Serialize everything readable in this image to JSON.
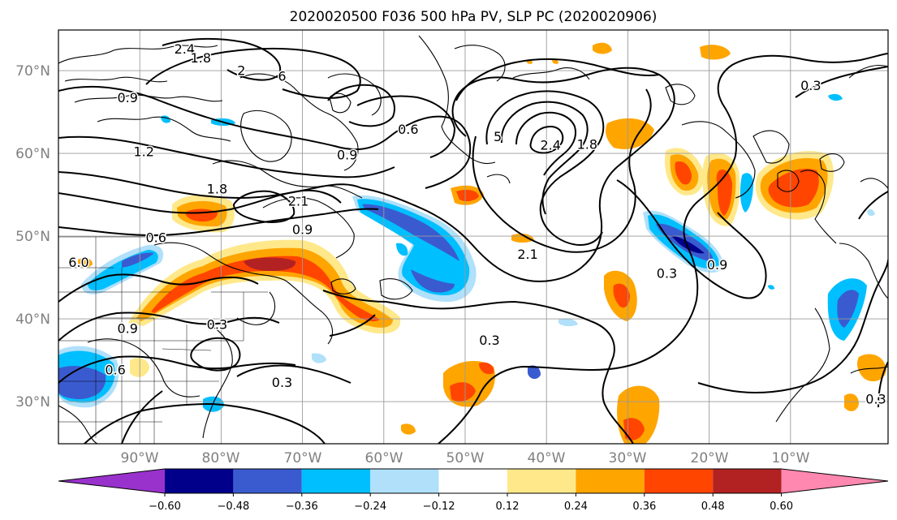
{
  "figure": {
    "title": "2020020500 F036 500 hPa PV, SLP PC (2020020906)"
  },
  "map": {
    "projection": "lat-lon",
    "extent": {
      "lon": [
        -100,
        2
      ],
      "lat": [
        25,
        75
      ]
    },
    "lat_labels": [
      {
        "lat": 70,
        "text": "70°N"
      },
      {
        "lat": 60,
        "text": "60°N"
      },
      {
        "lat": 50,
        "text": "50°N"
      },
      {
        "lat": 40,
        "text": "40°N"
      },
      {
        "lat": 30,
        "text": "30°N"
      }
    ],
    "lon_labels": [
      {
        "lon": -90,
        "text": "90°W"
      },
      {
        "lon": -80,
        "text": "80°W"
      },
      {
        "lon": -70,
        "text": "70°W"
      },
      {
        "lon": -60,
        "text": "60°W"
      },
      {
        "lon": -50,
        "text": "50°W"
      },
      {
        "lon": -40,
        "text": "40°W"
      },
      {
        "lon": -30,
        "text": "30°W"
      },
      {
        "lon": -20,
        "text": "20°W"
      },
      {
        "lon": -10,
        "text": "10°W"
      }
    ],
    "grid": true,
    "contour_labels": [
      {
        "text": "2.4",
        "lon": -84.5,
        "lat": 72.6
      },
      {
        "text": "1.8",
        "lon": -82.5,
        "lat": 71.5
      },
      {
        "text": "2",
        "lon": -77.5,
        "lat": 70.0
      },
      {
        "text": "6",
        "lon": -72.5,
        "lat": 69.3
      },
      {
        "text": "0.9",
        "lon": -91.5,
        "lat": 66.7
      },
      {
        "text": "1.2",
        "lon": -89.5,
        "lat": 60.2
      },
      {
        "text": "1.8",
        "lon": -80.5,
        "lat": 55.7
      },
      {
        "text": "2.1",
        "lon": -70.5,
        "lat": 54.2
      },
      {
        "text": "0.9",
        "lon": -70.0,
        "lat": 50.8
      },
      {
        "text": "0.6",
        "lon": -88.0,
        "lat": 49.8
      },
      {
        "text": "0.9",
        "lon": -64.5,
        "lat": 59.8
      },
      {
        "text": "0.6",
        "lon": -57.0,
        "lat": 62.9
      },
      {
        "text": "5",
        "lon": -46.0,
        "lat": 62.0
      },
      {
        "text": "2.4",
        "lon": -39.5,
        "lat": 61.0
      },
      {
        "text": "1.8",
        "lon": -35.0,
        "lat": 61.1
      },
      {
        "text": "2.1",
        "lon": -42.3,
        "lat": 47.8
      },
      {
        "text": "0.3",
        "lon": -47.0,
        "lat": 37.4
      },
      {
        "text": "0.3",
        "lon": -25.2,
        "lat": 45.5
      },
      {
        "text": "0.9",
        "lon": -19.0,
        "lat": 46.5
      },
      {
        "text": "0.3",
        "lon": -7.5,
        "lat": 68.2
      },
      {
        "text": "0.9",
        "lon": -91.5,
        "lat": 38.8
      },
      {
        "text": "0.6",
        "lon": -93.0,
        "lat": 33.8
      },
      {
        "text": "0.3",
        "lon": -80.5,
        "lat": 39.3
      },
      {
        "text": "0.3",
        "lon": -72.5,
        "lat": 32.3
      },
      {
        "text": "6.0",
        "lon": -97.5,
        "lat": 46.8
      },
      {
        "text": "0.3",
        "lon": 0.5,
        "lat": 30.3
      }
    ]
  },
  "colorbar": {
    "ticks": [
      "−0.60",
      "−0.48",
      "−0.36",
      "−0.24",
      "−0.12",
      "0.12",
      "0.24",
      "0.36",
      "0.48",
      "0.60"
    ],
    "colors": [
      "#9932cc",
      "#00008b",
      "#3a5bd0",
      "#00bfff",
      "#b0e0fa",
      "#ffffff",
      "#ffe88a",
      "#ffa500",
      "#ff4500",
      "#b22222",
      "#ff88b0"
    ]
  }
}
